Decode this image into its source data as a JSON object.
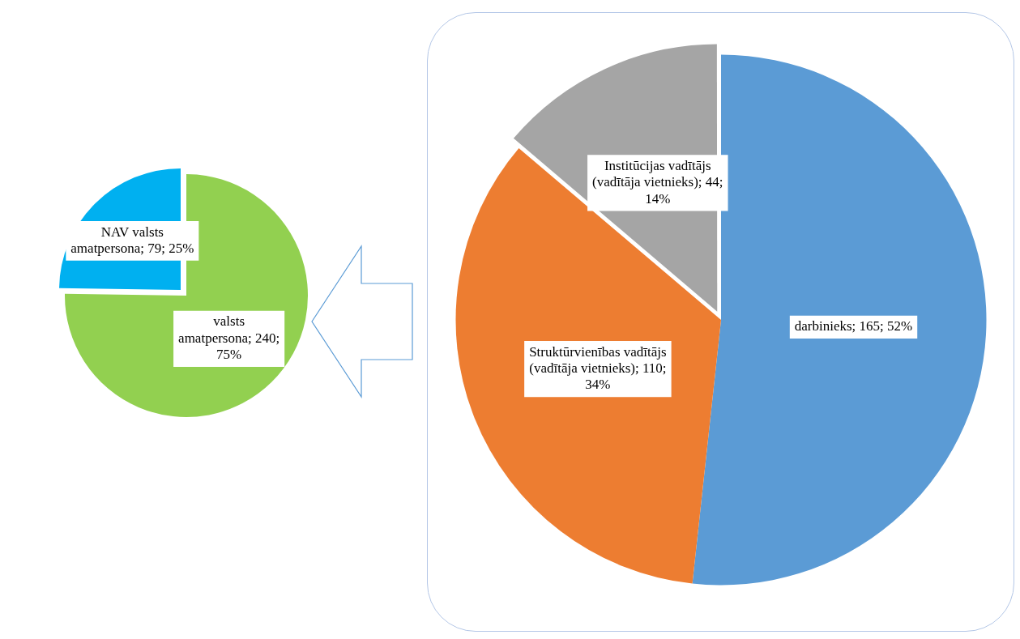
{
  "chart_data": [
    {
      "type": "pie",
      "categories": [
        "valsts amatpersona",
        "NAV valsts amatpersona"
      ],
      "values": [
        240,
        79
      ],
      "value_labels": [
        "240; 75%",
        "79; 25%"
      ],
      "colors": [
        "#92d050",
        "#00b0f0"
      ]
    },
    {
      "type": "pie",
      "categories": [
        "darbinieks",
        "Struktūrvienības vadītājs (vadītāja vietnieks)",
        "Institūcijas vadītājs (vadītāja vietnieks)"
      ],
      "values": [
        165,
        110,
        44
      ],
      "value_labels": [
        "165; 52%",
        "110; 34%",
        "44; 14%"
      ],
      "colors": [
        "#5b9bd5",
        "#ed7d31",
        "#a5a5a5"
      ]
    }
  ]
}
